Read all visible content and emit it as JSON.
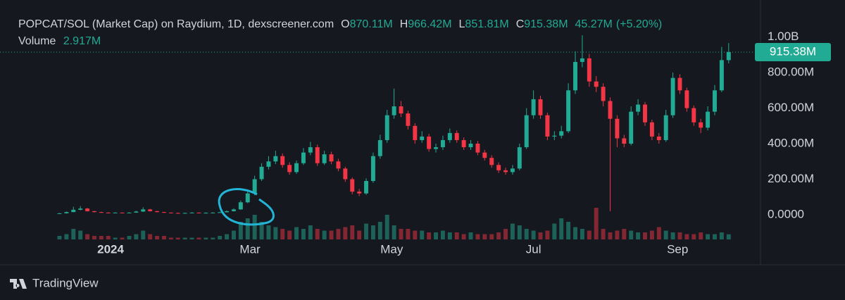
{
  "chart_data": {
    "type": "candlestick",
    "title": "POPCAT/SOL (Market Cap) on Raydium, 1D, dexscreener.com",
    "legend": {
      "open_label": "O",
      "open": "870.11M",
      "high_label": "H",
      "high": "966.42M",
      "low_label": "L",
      "low": "851.81M",
      "close_label": "C",
      "close": "915.38M",
      "change": "45.27M",
      "change_pct": "(+5.20%)",
      "volume_label": "Volume",
      "volume": "2.917M"
    },
    "x": [
      -22,
      -19,
      -16,
      -13,
      -10,
      -7,
      -4,
      -1,
      2,
      5,
      8,
      11,
      14,
      17,
      20,
      23,
      26,
      29,
      32,
      35,
      38,
      41,
      44,
      47,
      50,
      53,
      56,
      59,
      62,
      65,
      68,
      71,
      74,
      77,
      80,
      83,
      86,
      89,
      92,
      95,
      98,
      101,
      104,
      107,
      110,
      113,
      116,
      119,
      122,
      125,
      128,
      131,
      134,
      137,
      140,
      143,
      146,
      149,
      152,
      155,
      158,
      161,
      164,
      167,
      170,
      173,
      176,
      179,
      182,
      185,
      188,
      191,
      194,
      197,
      200,
      203,
      206,
      209,
      212,
      215,
      218,
      221,
      224,
      227,
      230,
      233,
      236,
      239,
      242,
      245,
      248,
      251,
      254,
      257,
      260,
      263,
      266
    ],
    "open": [
      6,
      8,
      15,
      28,
      35,
      20,
      15,
      12,
      10,
      12,
      10,
      12,
      18,
      30,
      20,
      15,
      12,
      10,
      9,
      10,
      12,
      10,
      11,
      12,
      14,
      20,
      30,
      70,
      120,
      200,
      270,
      300,
      330,
      280,
      240,
      290,
      350,
      380,
      290,
      340,
      300,
      260,
      200,
      130,
      120,
      190,
      330,
      420,
      560,
      610,
      570,
      500,
      420,
      440,
      370,
      380,
      420,
      460,
      420,
      380,
      400,
      350,
      320,
      280,
      250,
      240,
      260,
      380,
      560,
      650,
      560,
      440,
      445,
      470,
      700,
      860,
      880,
      750,
      720,
      640,
      540,
      430,
      400,
      580,
      620,
      520,
      440,
      420,
      560,
      770,
      700,
      600,
      520,
      490,
      580,
      700,
      870.11
    ],
    "high": [
      10,
      18,
      45,
      48,
      38,
      22,
      17,
      14,
      14,
      13,
      14,
      22,
      42,
      33,
      22,
      16,
      13,
      12,
      12,
      14,
      13,
      13,
      14,
      16,
      24,
      36,
      80,
      135,
      220,
      290,
      330,
      360,
      345,
      295,
      305,
      375,
      410,
      395,
      360,
      355,
      315,
      270,
      210,
      145,
      205,
      350,
      450,
      590,
      710,
      640,
      585,
      515,
      470,
      455,
      400,
      445,
      485,
      475,
      435,
      420,
      415,
      365,
      335,
      295,
      265,
      280,
      400,
      600,
      700,
      670,
      575,
      470,
      500,
      740,
      920,
      1010,
      905,
      780,
      740,
      660,
      560,
      450,
      610,
      650,
      635,
      535,
      460,
      590,
      800,
      790,
      715,
      615,
      540,
      610,
      730,
      945,
      966.42
    ],
    "low": [
      5,
      7,
      14,
      25,
      18,
      13,
      10,
      8,
      9,
      8,
      9,
      11,
      16,
      18,
      13,
      10,
      8,
      7,
      8,
      9,
      8,
      9,
      10,
      11,
      13,
      18,
      28,
      65,
      110,
      190,
      255,
      285,
      265,
      225,
      230,
      280,
      335,
      275,
      280,
      285,
      245,
      185,
      115,
      105,
      112,
      180,
      315,
      405,
      540,
      550,
      480,
      400,
      405,
      355,
      350,
      365,
      405,
      405,
      365,
      365,
      335,
      305,
      265,
      235,
      225,
      225,
      250,
      370,
      540,
      540,
      420,
      420,
      430,
      460,
      680,
      830,
      720,
      690,
      610,
      20,
      380,
      380,
      390,
      560,
      500,
      420,
      400,
      410,
      545,
      680,
      580,
      500,
      460,
      475,
      560,
      690,
      851.81
    ],
    "close": [
      8,
      15,
      28,
      35,
      20,
      15,
      12,
      10,
      12,
      10,
      12,
      18,
      30,
      20,
      15,
      12,
      10,
      9,
      10,
      12,
      10,
      11,
      12,
      14,
      20,
      30,
      70,
      120,
      200,
      270,
      300,
      330,
      280,
      240,
      290,
      350,
      380,
      290,
      340,
      300,
      260,
      200,
      130,
      120,
      190,
      330,
      420,
      560,
      610,
      570,
      500,
      420,
      440,
      370,
      380,
      420,
      460,
      420,
      380,
      400,
      350,
      320,
      280,
      250,
      240,
      260,
      380,
      560,
      650,
      560,
      440,
      445,
      470,
      700,
      860,
      880,
      750,
      720,
      640,
      540,
      430,
      400,
      580,
      620,
      520,
      440,
      420,
      560,
      770,
      700,
      600,
      520,
      490,
      580,
      700,
      870.11,
      915.38
    ],
    "volume": [
      2,
      3,
      6,
      5,
      3,
      2,
      2,
      2,
      1,
      1,
      2,
      3,
      5,
      3,
      2,
      2,
      1,
      1,
      1,
      1,
      1,
      1,
      1,
      2,
      3,
      5,
      10,
      12,
      14,
      10,
      8,
      7,
      6,
      5,
      7,
      6,
      8,
      6,
      5,
      5,
      6,
      7,
      8,
      5,
      9,
      8,
      10,
      14,
      8,
      6,
      6,
      5,
      5,
      4,
      4,
      5,
      4,
      4,
      3,
      4,
      3,
      3,
      3,
      4,
      6,
      9,
      8,
      6,
      5,
      4,
      5,
      9,
      12,
      10,
      7,
      6,
      5,
      18,
      6,
      4,
      5,
      6,
      5,
      4,
      4,
      5,
      7,
      5,
      4,
      4,
      3,
      3,
      4,
      3,
      3,
      4,
      2.917
    ],
    "vlim": [
      0,
      20
    ],
    "xlim": [
      -47.6,
      279.7
    ],
    "xticks": [
      {
        "value": 0,
        "label": "2024"
      },
      {
        "value": 60,
        "label": "Mar"
      },
      {
        "value": 121,
        "label": "May"
      },
      {
        "value": 182,
        "label": "Jul"
      },
      {
        "value": 244,
        "label": "Sep"
      }
    ],
    "ylim": [
      -139,
      1050
    ],
    "yticks": [
      {
        "value": 0,
        "label": "0.0000"
      },
      {
        "value": 200,
        "label": "200.00M"
      },
      {
        "value": 400,
        "label": "400.00M"
      },
      {
        "value": 600,
        "label": "600.00M"
      },
      {
        "value": 800,
        "label": "800.00M"
      },
      {
        "value": 1000,
        "label": "1.00B"
      }
    ],
    "last_price": {
      "value": 915.38,
      "label": "915.38M"
    },
    "up_color": "#22ab94",
    "down_color": "#f23645",
    "grid": false,
    "watermark": "TradingView"
  }
}
